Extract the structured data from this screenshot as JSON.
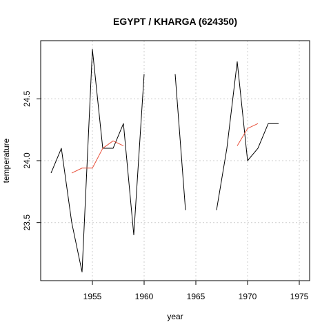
{
  "chart_data": {
    "type": "line",
    "title": "EGYPT / KHARGA (624350)",
    "xlabel": "year",
    "ylabel": "temperature",
    "xlim": [
      1950,
      1976
    ],
    "ylim": [
      23.03,
      24.97
    ],
    "x_ticks": [
      1955,
      1960,
      1965,
      1970,
      1975
    ],
    "y_ticks": [
      23.5,
      24.0,
      24.5
    ],
    "grid": true,
    "series": [
      {
        "color": "#000000",
        "points": [
          [
            1951,
            23.9
          ],
          [
            1952,
            24.1
          ],
          [
            1953,
            23.5
          ],
          [
            1954,
            23.1
          ],
          [
            1955,
            24.9
          ],
          [
            1956,
            24.1
          ],
          [
            1957,
            24.1
          ],
          [
            1958,
            24.3
          ],
          [
            1959,
            23.4
          ],
          [
            1960,
            24.7
          ],
          [
            1961,
            null
          ],
          [
            1962,
            null
          ],
          [
            1963,
            24.7
          ],
          [
            1964,
            23.6
          ],
          [
            1965,
            null
          ],
          [
            1966,
            null
          ],
          [
            1967,
            23.6
          ],
          [
            1968,
            24.1
          ],
          [
            1969,
            24.8
          ],
          [
            1970,
            24.0
          ],
          [
            1971,
            24.1
          ],
          [
            1972,
            24.3
          ],
          [
            1973,
            24.3
          ]
        ]
      },
      {
        "color": "#e8503a",
        "points": [
          [
            1953,
            23.9
          ],
          [
            1954,
            23.94
          ],
          [
            1955,
            23.94
          ],
          [
            1956,
            24.1
          ],
          [
            1957,
            24.16
          ],
          [
            1958,
            24.12
          ],
          [
            1959,
            null
          ],
          [
            1969,
            24.12
          ],
          [
            1970,
            24.26
          ],
          [
            1971,
            24.3
          ]
        ]
      }
    ]
  }
}
